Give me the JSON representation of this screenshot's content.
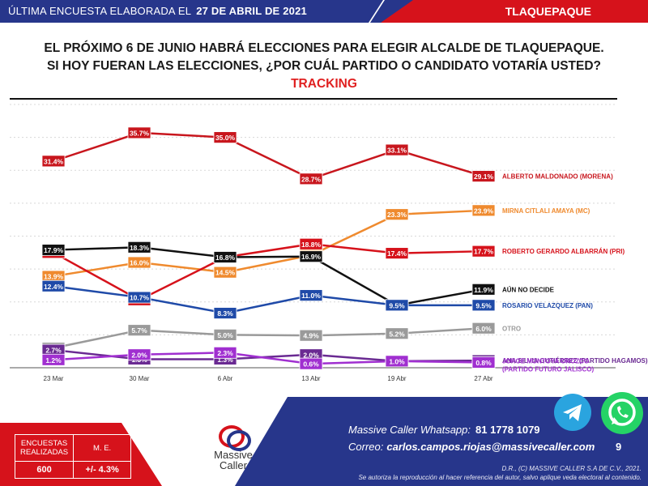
{
  "header": {
    "subtitle_label": "ÚLTIMA ENCUESTA ELABORADA EL",
    "date": "27 DE ABRIL DE 2021",
    "city": "TLAQUEPAQUE"
  },
  "title": {
    "line1": "EL PRÓXIMO 6 DE JUNIO HABRÁ ELECCIONES PARA ELEGIR ALCALDE DE TLAQUEPAQUE.",
    "line2": "SI HOY FUERAN LAS ELECCIONES, ¿POR CUÁL PARTIDO O CANDIDATO VOTARÍA USTED?",
    "line3": "TRACKING"
  },
  "chart_data": {
    "type": "line",
    "categories": [
      "23 Mar",
      "30 Mar",
      "6 Abr",
      "13 Abr",
      "19 Abr",
      "27 Abr"
    ],
    "ylim": [
      0,
      40
    ],
    "grid": true,
    "legend": "right",
    "series": [
      {
        "name": "ALBERTO MALDONADO (MORENA)",
        "color": "#c8161d",
        "values": [
          31.4,
          35.7,
          35.0,
          28.7,
          33.1,
          29.1
        ]
      },
      {
        "name": "MIRNA CITLALI AMAYA (MC)",
        "color": "#ef8a2e",
        "values": [
          13.9,
          16.0,
          14.5,
          17.1,
          23.3,
          23.9
        ]
      },
      {
        "name": "ROBERTO GERARDO ALBARRÁN (PRI)",
        "color": "#d6121b",
        "values": [
          17.5,
          10.3,
          16.8,
          18.8,
          17.4,
          17.7
        ]
      },
      {
        "name": "AÚN NO DECIDE",
        "color": "#111111",
        "values": [
          17.9,
          18.3,
          16.8,
          16.9,
          9.5,
          11.9
        ]
      },
      {
        "name": "ROSARIO VELAZQUEZ (PAN)",
        "color": "#1f4aa8",
        "values": [
          12.4,
          10.7,
          8.3,
          11.0,
          9.5,
          9.5
        ]
      },
      {
        "name": "OTRO",
        "color": "#9a9a9a",
        "values": [
          3.0,
          5.7,
          5.0,
          4.9,
          5.2,
          6.0
        ]
      },
      {
        "name": "ANA SILVIA GUTIÉRREZ (PARTIDO HAGAMOS)",
        "color": "#6a2a92",
        "values": [
          2.7,
          1.3,
          1.3,
          2.0,
          1.0,
          1.1
        ]
      },
      {
        "name": "JORGE MONTOYA OROZCO (PARTIDO FUTURO JALISCO)",
        "color": "#a02fd0",
        "values": [
          1.2,
          2.0,
          2.3,
          0.6,
          1.0,
          0.8
        ]
      }
    ]
  },
  "footer": {
    "stats_header_1": "ENCUESTAS REALIZADAS",
    "stats_header_2": "M. E.",
    "stats_value_1": "600",
    "stats_value_2": "+/- 4.3%",
    "logo_name": "Massive Caller",
    "whatsapp_label": "Massive Caller Whatsapp:",
    "whatsapp_number": "81 1778 1079",
    "email_label": "Correo:",
    "email": "carlos.campos.riojas@massivecaller.com",
    "page_number": "9",
    "copyright_1": "D.R., (C) MASSIVE CALLER S.A DE C.V., 2021.",
    "copyright_2": "Se autoriza la reproducción al hacer referencia del autor, salvo aplique veda electoral al contenido."
  }
}
